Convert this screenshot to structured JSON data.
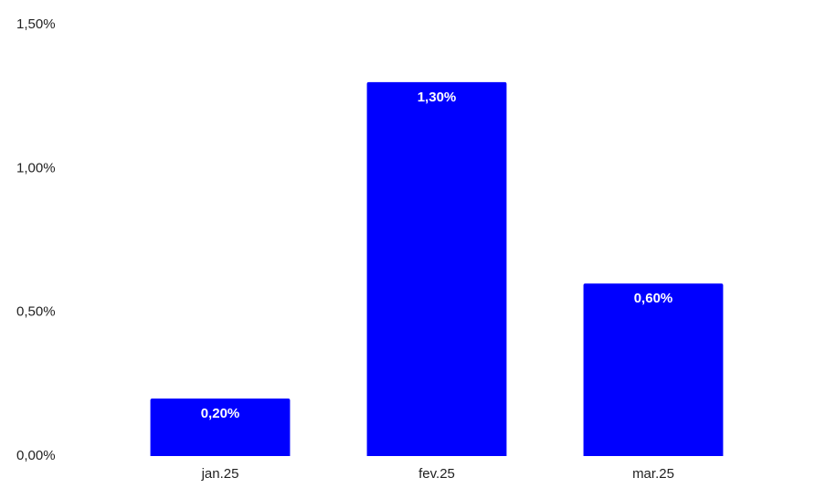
{
  "chart_data": {
    "type": "bar",
    "categories": [
      "jan.25",
      "fev.25",
      "mar.25"
    ],
    "values": [
      0.2,
      1.3,
      0.6
    ],
    "value_labels": [
      "0,20%",
      "1,30%",
      "0,60%"
    ],
    "color": "#0000ff",
    "ylim": [
      0,
      1.5
    ],
    "yticks": [
      {
        "value": 0,
        "label": "0,00%"
      },
      {
        "value": 0.5,
        "label": "0,50%"
      },
      {
        "value": 1,
        "label": "1,00%"
      },
      {
        "value": 1.5,
        "label": "1,50%"
      }
    ],
    "grid": false
  }
}
